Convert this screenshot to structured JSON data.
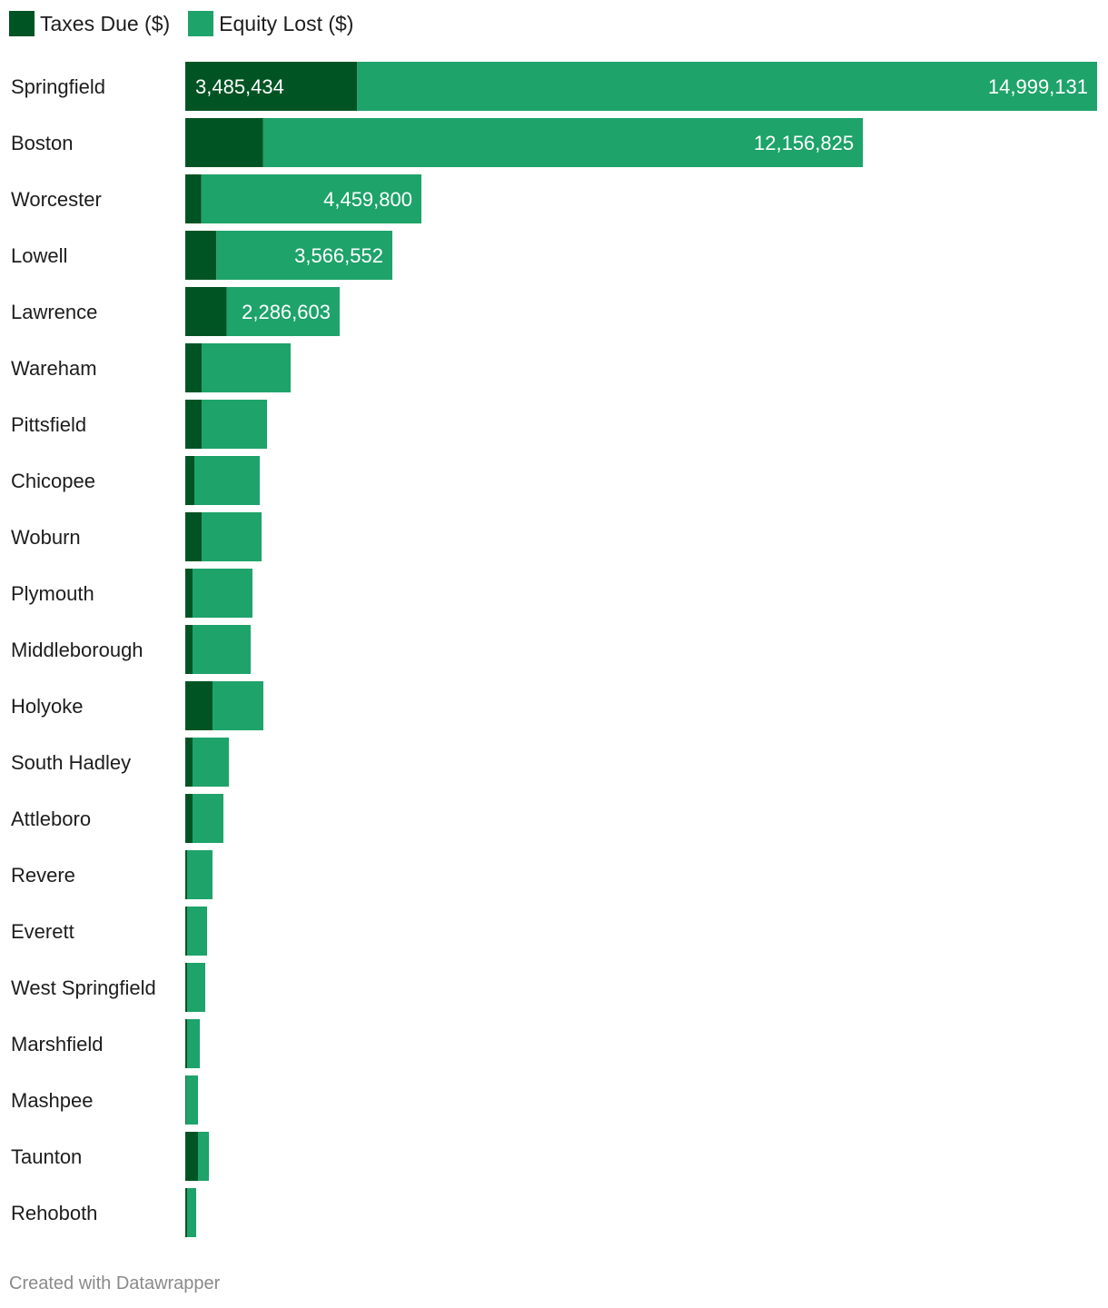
{
  "colors": {
    "taxes": "#005423",
    "equity": "#1ea36a"
  },
  "chart_data": {
    "type": "bar",
    "orientation": "horizontal",
    "stacked": true,
    "legend": {
      "placement": "top-left",
      "entries": [
        "Taxes Due ($)",
        "Equity Lost ($)"
      ]
    },
    "categories": [
      "Springfield",
      "Boston",
      "Worcester",
      "Lowell",
      "Lawrence",
      "Wareham",
      "Pittsfield",
      "Chicopee",
      "Woburn",
      "Plymouth",
      "Middleborough",
      "Holyoke",
      "South Hadley",
      "Attleboro",
      "Revere",
      "Everett",
      "West Springfield",
      "Marshfield",
      "Mashpee",
      "Taunton",
      "Rehoboth"
    ],
    "series": [
      {
        "name": "Taxes Due ($)",
        "values": [
          3485434,
          1580000,
          327000,
          631000,
          843000,
          331000,
          331000,
          184000,
          331000,
          147000,
          147000,
          552000,
          147000,
          147000,
          37000,
          37000,
          37000,
          37000,
          10000,
          258000,
          37000
        ],
        "labels": [
          "3,485,434",
          null,
          null,
          null,
          null,
          null,
          null,
          null,
          null,
          null,
          null,
          null,
          null,
          null,
          null,
          null,
          null,
          null,
          null,
          null,
          null
        ]
      },
      {
        "name": "Equity Lost ($)",
        "values": [
          14999131,
          12156825,
          4459800,
          3566552,
          2286603,
          1805000,
          1326000,
          1326000,
          1216000,
          1215000,
          1179000,
          1031000,
          737000,
          626000,
          515000,
          405000,
          368000,
          258000,
          248000,
          221000,
          184000
        ],
        "labels": [
          "14,999,131",
          "12,156,825",
          "4,459,800",
          "3,566,552",
          "2,286,603",
          null,
          null,
          null,
          null,
          null,
          null,
          null,
          null,
          null,
          null,
          null,
          null,
          null,
          null,
          null,
          null
        ]
      }
    ],
    "xlim": [
      0,
      18484565
    ],
    "grid": false
  },
  "footer": "Created with Datawrapper"
}
